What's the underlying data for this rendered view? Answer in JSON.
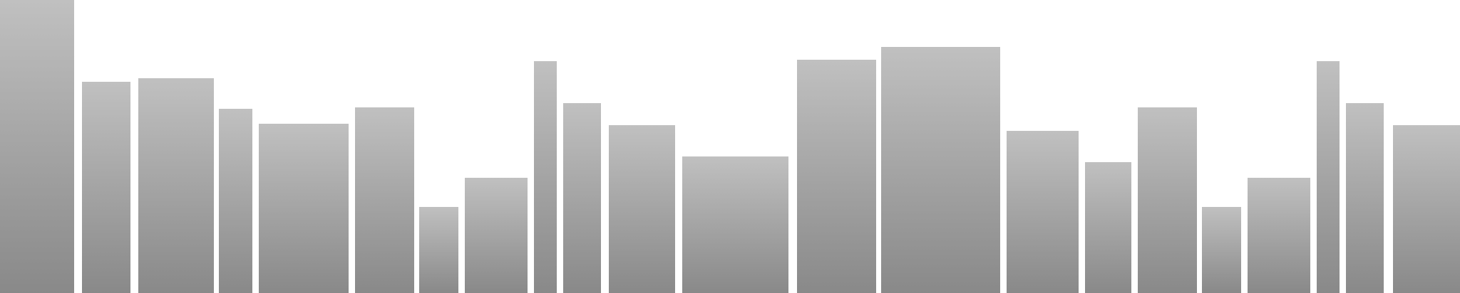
{
  "chart_data": {
    "type": "bar",
    "variable_width": true,
    "ylim": [
      0,
      412
    ],
    "grid": false,
    "legend": "none",
    "colors": {
      "bar_top": "#c0c0c0",
      "bar_bottom": "#898989",
      "background": "#ffffff"
    },
    "bars": [
      {
        "x0": 0,
        "x1": 104,
        "value": 412
      },
      {
        "x0": 115,
        "x1": 183,
        "value": 297
      },
      {
        "x0": 194,
        "x1": 300,
        "value": 302
      },
      {
        "x0": 307,
        "x1": 354,
        "value": 259
      },
      {
        "x0": 363,
        "x1": 489,
        "value": 238
      },
      {
        "x0": 498,
        "x1": 581,
        "value": 261
      },
      {
        "x0": 588,
        "x1": 643,
        "value": 121
      },
      {
        "x0": 652,
        "x1": 740,
        "value": 162
      },
      {
        "x0": 749,
        "x1": 781,
        "value": 326
      },
      {
        "x0": 790,
        "x1": 843,
        "value": 267
      },
      {
        "x0": 854,
        "x1": 947,
        "value": 236
      },
      {
        "x0": 957,
        "x1": 1106,
        "value": 192
      },
      {
        "x0": 1118,
        "x1": 1229,
        "value": 328
      },
      {
        "x0": 1236,
        "x1": 1403,
        "value": 346
      },
      {
        "x0": 1412,
        "x1": 1513,
        "value": 228
      },
      {
        "x0": 1522,
        "x1": 1587,
        "value": 184
      },
      {
        "x0": 1596,
        "x1": 1679,
        "value": 261
      },
      {
        "x0": 1686,
        "x1": 1741,
        "value": 121
      },
      {
        "x0": 1750,
        "x1": 1838,
        "value": 162
      },
      {
        "x0": 1847,
        "x1": 1879,
        "value": 326
      },
      {
        "x0": 1888,
        "x1": 1941,
        "value": 267
      },
      {
        "x0": 1954,
        "x1": 2048,
        "value": 236
      }
    ]
  }
}
